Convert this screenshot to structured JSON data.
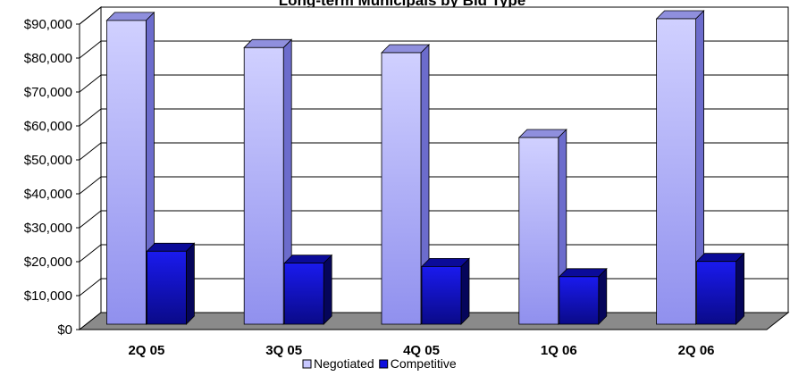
{
  "chart_data": {
    "type": "bar",
    "title": "Long-term Municipals by Bid Type",
    "xlabel": "",
    "ylabel": "",
    "categories": [
      "2Q 05",
      "3Q 05",
      "4Q 05",
      "1Q 06",
      "2Q 06"
    ],
    "series": [
      {
        "name": "Negotiated",
        "values": [
          89500,
          81500,
          80000,
          55000,
          90000
        ],
        "color": "#b8b8ff"
      },
      {
        "name": "Competitive",
        "values": [
          21500,
          18000,
          17000,
          14000,
          18500
        ],
        "color": "#1010cc"
      }
    ],
    "ylim": [
      0,
      90000
    ],
    "yticks": [
      "$0",
      "$10,000",
      "$20,000",
      "$30,000",
      "$40,000",
      "$50,000",
      "$60,000",
      "$70,000",
      "$80,000",
      "$90,000"
    ],
    "ytick_values": [
      0,
      10000,
      20000,
      30000,
      40000,
      50000,
      60000,
      70000,
      80000,
      90000
    ],
    "grid": true,
    "legend_position": "bottom",
    "colors": {
      "floor": "#8a8a8a",
      "grid": "#000000",
      "wall": "#ffffff"
    }
  }
}
